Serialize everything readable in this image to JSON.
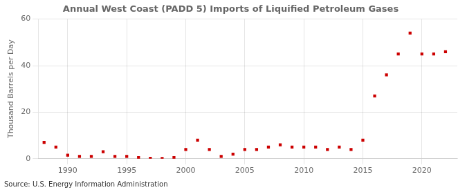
{
  "chart_data": {
    "type": "scatter",
    "title": "Annual West Coast (PADD 5) Imports of Liquified Petroleum Gases",
    "y_label": "Thousand Barrels per Day",
    "annotations": [
      "Source: U.S. Energy Information Administration"
    ],
    "x": [
      1988,
      1989,
      1990,
      1991,
      1992,
      1993,
      1994,
      1995,
      1996,
      1997,
      1998,
      1999,
      2000,
      2001,
      2002,
      2003,
      2004,
      2005,
      2006,
      2007,
      2008,
      2009,
      2010,
      2011,
      2012,
      2013,
      2014,
      2015,
      2016,
      2017,
      2018,
      2019,
      2020,
      2021,
      2022
    ],
    "values": [
      7,
      5,
      1.5,
      1,
      1,
      3,
      1,
      1,
      0.5,
      0.2,
      0.1,
      0.5,
      4,
      8,
      4,
      1,
      2,
      4,
      4,
      5,
      6,
      5,
      5,
      5,
      4,
      5,
      4,
      8,
      27,
      36,
      45,
      54,
      45,
      45,
      46
    ],
    "color": "#cc0000",
    "marker": "square",
    "xlim": [
      1987.5,
      2023
    ],
    "xticks": [
      1990,
      1995,
      2000,
      2005,
      2010,
      2015,
      2020
    ],
    "ylim": [
      0,
      60
    ],
    "yticks": [
      0,
      20,
      40,
      60
    ],
    "grid": true
  }
}
